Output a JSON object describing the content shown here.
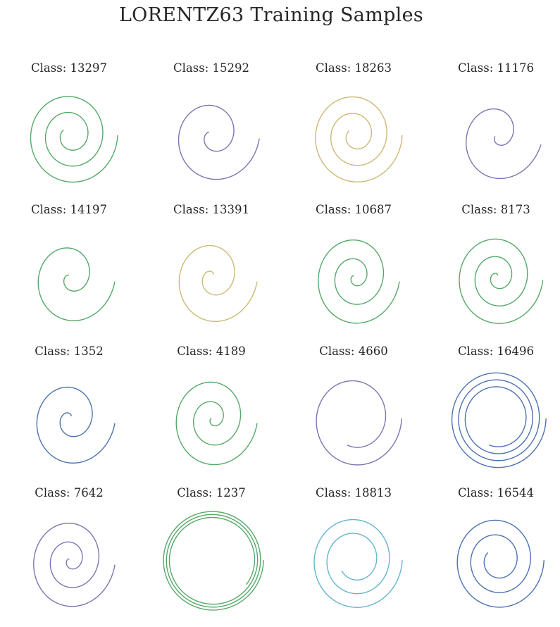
{
  "title": "LORENTZ63 Training Samples",
  "colors": {
    "green": "#55a868",
    "purple": "#8172b2",
    "gold": "#ccb974",
    "blue": "#4c72b0",
    "cyan": "#64b5cd",
    "text": "#262626",
    "background": "#ffffff"
  },
  "chart_data": [
    {
      "type": "line",
      "title": "Class: 13297",
      "color": "green",
      "turns": 2.6,
      "inner_radius": 0.18,
      "outer_radius": 1.0,
      "end_angle_deg": 180,
      "tilt_deg": 0,
      "aspect": 0.93,
      "grid": false,
      "axes": "hidden"
    },
    {
      "type": "line",
      "title": "Class: 15292",
      "color": "purple",
      "turns": 1.6,
      "inner_radius": 0.1,
      "outer_radius": 1.0,
      "end_angle_deg": 180,
      "tilt_deg": 4,
      "aspect": 0.92,
      "grid": false,
      "axes": "hidden"
    },
    {
      "type": "line",
      "title": "Class: 18263",
      "color": "gold",
      "turns": 2.6,
      "inner_radius": 0.15,
      "outer_radius": 1.0,
      "end_angle_deg": 180,
      "tilt_deg": 0,
      "aspect": 0.93,
      "grid": false,
      "axes": "hidden"
    },
    {
      "type": "line",
      "title": "Class: 11176",
      "color": "purple",
      "turns": 1.4,
      "inner_radius": 0.05,
      "outer_radius": 1.0,
      "end_angle_deg": 180,
      "tilt_deg": 12,
      "aspect": 0.88,
      "grid": false,
      "axes": "hidden"
    },
    {
      "type": "line",
      "title": "Class: 14197",
      "color": "green",
      "turns": 1.6,
      "inner_radius": 0.05,
      "outer_radius": 1.0,
      "end_angle_deg": 180,
      "tilt_deg": 6,
      "aspect": 0.88,
      "grid": false,
      "axes": "hidden"
    },
    {
      "type": "line",
      "title": "Class: 13391",
      "color": "gold",
      "turns": 1.8,
      "inner_radius": 0.05,
      "outer_radius": 1.0,
      "end_angle_deg": 180,
      "tilt_deg": 6,
      "aspect": 0.88,
      "grid": false,
      "axes": "hidden"
    },
    {
      "type": "line",
      "title": "Class: 10687",
      "color": "green",
      "turns": 2.6,
      "inner_radius": 0.03,
      "outer_radius": 1.0,
      "end_angle_deg": 180,
      "tilt_deg": 6,
      "aspect": 0.88,
      "grid": false,
      "axes": "hidden"
    },
    {
      "type": "line",
      "title": "Class: 8173",
      "color": "green",
      "turns": 2.8,
      "inner_radius": 0.03,
      "outer_radius": 1.0,
      "end_angle_deg": 180,
      "tilt_deg": 4,
      "aspect": 0.9,
      "grid": false,
      "axes": "hidden"
    },
    {
      "type": "line",
      "title": "Class: 1352",
      "color": "blue",
      "turns": 1.8,
      "inner_radius": 0.05,
      "outer_radius": 1.0,
      "end_angle_deg": 180,
      "tilt_deg": 6,
      "aspect": 0.88,
      "grid": false,
      "axes": "hidden"
    },
    {
      "type": "line",
      "title": "Class: 4189",
      "color": "green",
      "turns": 2.5,
      "inner_radius": 0.03,
      "outer_radius": 1.0,
      "end_angle_deg": 180,
      "tilt_deg": 6,
      "aspect": 0.88,
      "grid": false,
      "axes": "hidden"
    },
    {
      "type": "line",
      "title": "Class: 4660",
      "color": "purple",
      "turns": 1.3,
      "inner_radius": 0.55,
      "outer_radius": 1.0,
      "end_angle_deg": 180,
      "tilt_deg": 0,
      "aspect": 0.92,
      "grid": false,
      "axes": "hidden"
    },
    {
      "type": "line",
      "title": "Class: 16496",
      "color": "blue",
      "turns": 3.3,
      "inner_radius": 0.55,
      "outer_radius": 1.0,
      "end_angle_deg": 180,
      "tilt_deg": 0,
      "aspect": 0.96,
      "grid": false,
      "axes": "hidden"
    },
    {
      "type": "line",
      "title": "Class: 7642",
      "color": "purple",
      "turns": 2.6,
      "inner_radius": 0.03,
      "outer_radius": 1.0,
      "end_angle_deg": 180,
      "tilt_deg": 6,
      "aspect": 0.88,
      "grid": false,
      "axes": "hidden"
    },
    {
      "type": "line",
      "title": "Class: 1237",
      "color": "green",
      "turns": 3.1,
      "inner_radius": 0.82,
      "outer_radius": 1.0,
      "end_angle_deg": 180,
      "tilt_deg": 0,
      "aspect": 1.0,
      "grid": false,
      "axes": "hidden"
    },
    {
      "type": "line",
      "title": "Class: 18813",
      "color": "cyan",
      "turns": 2.4,
      "inner_radius": 0.35,
      "outer_radius": 1.0,
      "end_angle_deg": 180,
      "tilt_deg": 0,
      "aspect": 0.93,
      "grid": false,
      "axes": "hidden"
    },
    {
      "type": "line",
      "title": "Class: 16544",
      "color": "blue",
      "turns": 2.6,
      "inner_radius": 0.25,
      "outer_radius": 1.0,
      "end_angle_deg": 180,
      "tilt_deg": 0,
      "aspect": 0.92,
      "grid": false,
      "axes": "hidden"
    }
  ]
}
